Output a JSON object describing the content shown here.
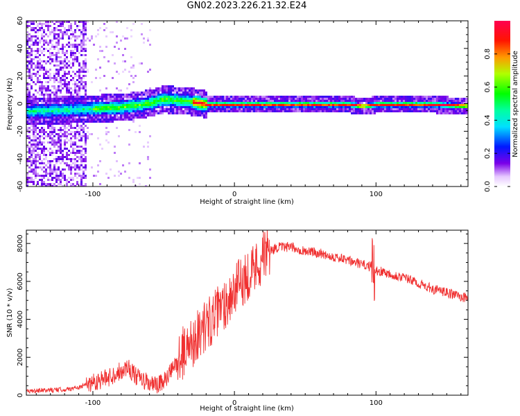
{
  "title": "GN02.2023.226.21.32.E24",
  "chart_data": [
    {
      "type": "heatmap",
      "xlabel": "Height of straight line (km)",
      "ylabel": "Frequency (Hz)",
      "xlim": [
        -147,
        165
      ],
      "ylim": [
        -60,
        60
      ],
      "xticks": [
        -100,
        0,
        100
      ],
      "xtick_labels": [
        "-100",
        "0",
        "100"
      ],
      "yticks": [
        -60,
        -40,
        -20,
        0,
        20,
        40,
        60
      ],
      "ytick_labels": [
        "-60",
        "-40",
        "-20",
        "0",
        "20",
        "40",
        "60"
      ],
      "colorbar": {
        "label": "Normalized spectral amplitude",
        "range": [
          0,
          1
        ],
        "ticks": [
          0.0,
          0.2,
          0.4,
          0.6,
          0.8
        ],
        "tick_labels": [
          "0.0",
          "0.2",
          "0.4",
          "0.6",
          "0.8"
        ],
        "colormap": "hsv-rainbow"
      },
      "ridge": {
        "x": [
          -147,
          -120,
          -100,
          -80,
          -60,
          -50,
          -40,
          -30,
          -20,
          -10,
          0,
          20,
          40,
          60,
          80,
          90,
          100,
          120,
          140,
          165
        ],
        "frequency": [
          -5,
          -4,
          -3,
          -2,
          1,
          4,
          3,
          2,
          0,
          0,
          0,
          0,
          0,
          0,
          0,
          -1,
          0,
          0,
          0,
          -1
        ]
      },
      "grid": false
    },
    {
      "type": "line",
      "xlabel": "Height of straight line (km)",
      "ylabel": "SNR (10 * v/v)",
      "xlim": [
        -147,
        165
      ],
      "ylim": [
        0,
        8700
      ],
      "xticks": [
        -100,
        0,
        100
      ],
      "xtick_labels": [
        "-100",
        "0",
        "100"
      ],
      "yticks": [
        0,
        2000,
        4000,
        6000,
        8000
      ],
      "ytick_labels": [
        "0",
        "2000",
        "4000",
        "6000",
        "8000"
      ],
      "series": [
        {
          "color": "#f03030",
          "x": [
            -147,
            -135,
            -120,
            -110,
            -100,
            -90,
            -80,
            -75,
            -70,
            -60,
            -55,
            -50,
            -45,
            -40,
            -35,
            -30,
            -25,
            -20,
            -15,
            -10,
            -5,
            0,
            5,
            10,
            15,
            20,
            25,
            30,
            40,
            50,
            60,
            70,
            80,
            90,
            95,
            100,
            110,
            120,
            130,
            140,
            150,
            165
          ],
          "values": [
            200,
            250,
            300,
            400,
            700,
            900,
            1300,
            1500,
            1000,
            600,
            500,
            700,
            1200,
            1800,
            2400,
            2800,
            3300,
            3700,
            4100,
            4500,
            5000,
            5500,
            6000,
            6400,
            6800,
            7300,
            7600,
            7800,
            7800,
            7600,
            7500,
            7300,
            7100,
            6900,
            6800,
            6600,
            6400,
            6200,
            5900,
            5600,
            5400,
            5100
          ]
        }
      ],
      "grid": false
    }
  ]
}
